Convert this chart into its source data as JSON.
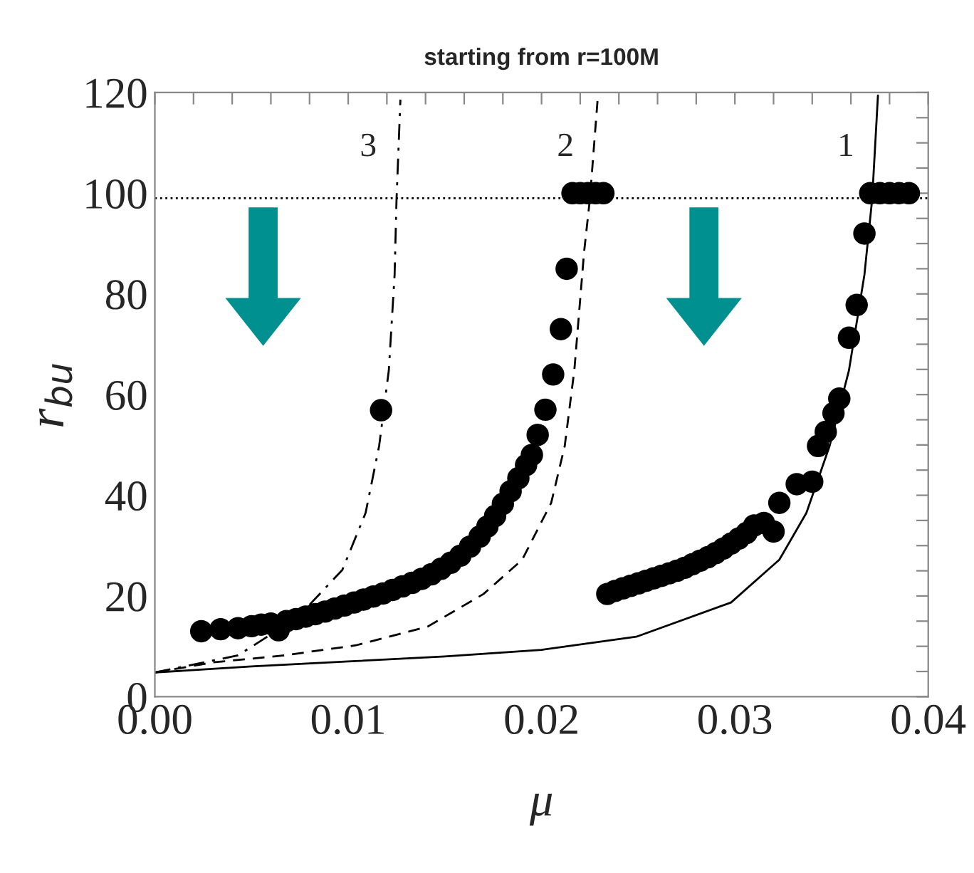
{
  "chart_data": {
    "type": "scatter",
    "title": "starting from r=100M",
    "xlabel": "μ",
    "ylabel": "r$_{bu}$",
    "xlim": [
      0,
      0.04
    ],
    "ylim": [
      0,
      120
    ],
    "xticks": [
      {
        "value": 0,
        "label": "0.00"
      },
      {
        "value": 0.002,
        "label": null
      },
      {
        "value": 0.004,
        "label": null
      },
      {
        "value": 0.006,
        "label": null
      },
      {
        "value": 0.008,
        "label": null
      },
      {
        "value": 0.01,
        "label": "0.01"
      },
      {
        "value": 0.012,
        "label": null
      },
      {
        "value": 0.014,
        "label": null
      },
      {
        "value": 0.016,
        "label": null
      },
      {
        "value": 0.018,
        "label": null
      },
      {
        "value": 0.02,
        "label": "0.02"
      },
      {
        "value": 0.022,
        "label": null
      },
      {
        "value": 0.024,
        "label": null
      },
      {
        "value": 0.026,
        "label": null
      },
      {
        "value": 0.028,
        "label": null
      },
      {
        "value": 0.03,
        "label": "0.03"
      },
      {
        "value": 0.032,
        "label": null
      },
      {
        "value": 0.034,
        "label": null
      },
      {
        "value": 0.036,
        "label": null
      },
      {
        "value": 0.038,
        "label": null
      },
      {
        "value": 0.04,
        "label": "0.04"
      }
    ],
    "yticks": [
      0,
      {
        "value": 5,
        "label": null
      },
      {
        "value": 10,
        "label": null
      },
      {
        "value": 15,
        "label": null
      },
      20,
      {
        "value": 25,
        "label": null
      },
      {
        "value": 30,
        "label": null
      },
      {
        "value": 35,
        "label": null
      },
      40,
      {
        "value": 45,
        "label": null
      },
      {
        "value": 50,
        "label": null
      },
      {
        "value": 55,
        "label": null
      },
      60,
      {
        "value": 65,
        "label": null
      },
      {
        "value": 70,
        "label": null
      },
      {
        "value": 75,
        "label": null
      },
      80,
      {
        "value": 85,
        "label": null
      },
      {
        "value": 90,
        "label": null
      },
      {
        "value": 95,
        "label": null
      },
      100,
      {
        "value": 105,
        "label": null
      },
      {
        "value": 110,
        "label": null
      },
      {
        "value": 115,
        "label": null
      },
      120
    ],
    "grid": false,
    "legend": false,
    "series": [
      {
        "type": "line",
        "color": "#000000",
        "line_style": "solid",
        "marker": "none",
        "x": [
          0,
          0.005,
          0.01,
          0.015,
          0.02,
          0.0249,
          0.0298,
          0.0323,
          0.0337,
          0.0349,
          0.0359,
          0.0367,
          0.0371,
          0.0374
        ],
        "values": [
          4.8,
          6,
          7,
          8,
          9.3,
          11.9,
          18.7,
          27.2,
          36.5,
          49.8,
          64.8,
          83.8,
          98.8,
          119.4
        ]
      },
      {
        "type": "line",
        "color": "#000000",
        "line_style": "dashed",
        "marker": "none",
        "x": [
          0,
          0.003,
          0.0067,
          0.0104,
          0.0141,
          0.017,
          0.019,
          0.0205,
          0.0212,
          0.0217,
          0.0222,
          0.0225,
          0.0229
        ],
        "values": [
          4.8,
          6.8,
          8.2,
          10.2,
          13.9,
          20.4,
          27.2,
          38.5,
          49.8,
          65,
          88.3,
          98.8,
          118.6
        ]
      },
      {
        "type": "line",
        "color": "#000000",
        "line_style": "dashdot",
        "marker": "none",
        "x": [
          0,
          0.0043,
          0.0074,
          0.0097,
          0.0109,
          0.0116,
          0.0121,
          0.0124,
          0.0125,
          0.0127
        ],
        "values": [
          4.8,
          8.2,
          15.8,
          25.2,
          36.5,
          49.8,
          64.8,
          83.8,
          98.8,
          118.6
        ]
      },
      {
        "color": "#000000",
        "marker": "circle",
        "x": [
          0.0024,
          0.0034,
          0.0043,
          0.005,
          0.0055,
          0.006,
          0.0064,
          0.0068,
          0.0073,
          0.0078,
          0.0083,
          0.0088,
          0.0093,
          0.0098,
          0.0103,
          0.0108,
          0.0113,
          0.0117,
          0.0118,
          0.0123,
          0.0128,
          0.0133,
          0.0138,
          0.0143,
          0.0148,
          0.0153,
          0.0158,
          0.0163,
          0.0168,
          0.0172,
          0.0176,
          0.018,
          0.0184,
          0.0188,
          0.0192,
          0.0195,
          0.0198,
          0.0202,
          0.0206,
          0.021,
          0.0213,
          0.0216,
          0.022,
          0.0224,
          0.0228,
          0.0232,
          0.0234,
          0.0238,
          0.0242,
          0.0246,
          0.025,
          0.0254,
          0.0258,
          0.0262,
          0.0266,
          0.027,
          0.0274,
          0.0278,
          0.0282,
          0.0286,
          0.029,
          0.0294,
          0.0298,
          0.0302,
          0.0306,
          0.031,
          0.0315,
          0.032,
          0.0323,
          0.0332,
          0.034,
          0.0343,
          0.0347,
          0.0351,
          0.0354,
          0.0359,
          0.0363,
          0.0367,
          0.037,
          0.0375,
          0.038,
          0.0385,
          0.039
        ],
        "values": [
          13,
          13.4,
          13.6,
          14,
          14.3,
          14.5,
          13.2,
          15,
          15.4,
          15.9,
          16.4,
          16.9,
          17.5,
          18.1,
          18.7,
          19.3,
          19.9,
          56.9,
          20.5,
          21.2,
          21.9,
          22.6,
          23.4,
          24.3,
          25.4,
          26.6,
          28,
          29.8,
          31.8,
          33.8,
          35.9,
          38.3,
          40.8,
          43.4,
          46,
          48,
          52,
          57,
          64,
          73,
          85,
          100,
          100,
          100,
          100,
          100,
          20.4,
          21,
          21.5,
          22,
          22.5,
          23,
          23.5,
          24,
          24.5,
          25,
          25.6,
          26.3,
          27,
          27.7,
          28.5,
          29.4,
          30.4,
          31.4,
          32.5,
          34,
          34.5,
          32.8,
          38.5,
          42.2,
          42.7,
          49.8,
          52.6,
          56.3,
          59.2,
          71.3,
          77.8,
          92,
          100,
          100,
          100,
          100,
          100
        ]
      }
    ],
    "ref_lines": [
      {
        "axis": "y",
        "value": 99,
        "line_style": "dotted",
        "color": "#000000"
      }
    ],
    "annotations": [
      "1",
      "2",
      "3"
    ]
  }
}
